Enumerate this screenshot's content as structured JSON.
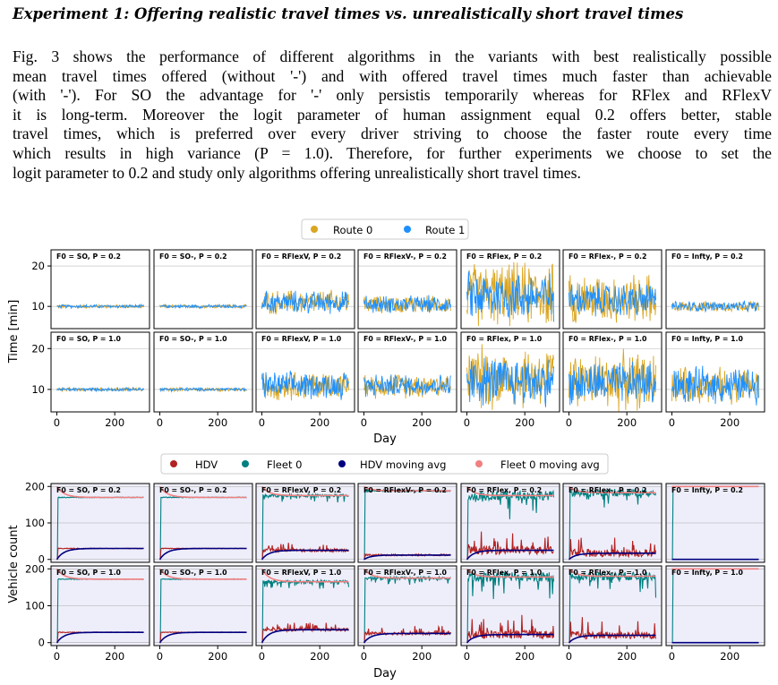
{
  "heading": "Experiment 1: Offering realistic travel times vs. unrealistically short travel times",
  "paragraph_lines": [
    "Fig. 3 shows the performance of different algorithms in the variants with best realistically possible",
    "mean travel times offered (without '-') and with offered travel times much faster than achievable",
    "(with '-'). For SO the advantage for '-' only persistis temporarily whereas for RFlex and RFlexV",
    "it is long-term. Moreover the logit parameter of human assignment equal 0.2 offers better, stable",
    "travel times, which is preferred over every driver striving to choose the faster route every time",
    "which results in high variance (P = 1.0). Therefore, for further experiments we choose to set the",
    "logit parameter to 0.2 and study only algorithms offering unrealistically short travel times."
  ],
  "colors": {
    "route0": "#DAA520",
    "route1": "#1E90FF",
    "hdv": "#B22222",
    "fleet0": "#008080",
    "hdv_avg": "#000080",
    "fleet0_avg": "#F08080",
    "panel_bg_bottom": "#EEEEFA"
  },
  "chart_data": [
    {
      "type": "line",
      "panel_titles": [
        [
          "F0 = SO, P = 0.2",
          "F0 = SO-, P = 0.2",
          "F0 = RFlexV, P = 0.2",
          "F0 = RFlexV-, P = 0.2",
          "F0 = RFlex, P = 0.2",
          "F0 = RFlex-, P = 0.2",
          "F0 = Infty, P = 0.2"
        ],
        [
          "F0 = SO, P = 1.0",
          "F0 = SO-, P = 1.0",
          "F0 = RFlexV, P = 1.0",
          "F0 = RFlexV-, P = 1.0",
          "F0 = RFlex, P = 1.0",
          "F0 = RFlex-, P = 1.0",
          "F0 = Infty, P = 1.0"
        ]
      ],
      "legend": [
        "Route 0",
        "Route 1"
      ],
      "legend_position": "top-center",
      "xlabel": "Day",
      "ylabel": "Time [min]",
      "xticks": [
        0,
        200
      ],
      "yticks": [
        10,
        20
      ],
      "xlim": [
        -20,
        320
      ],
      "ylim": [
        4.5,
        24
      ],
      "series_summary": [
        [
          {
            "route0": {
              "mean": 10,
              "spread": 0.5
            },
            "route1": {
              "mean": 10,
              "spread": 0.5
            }
          },
          {
            "route0": {
              "mean": 10,
              "spread": 0.5
            },
            "route1": {
              "mean": 10,
              "spread": 0.5
            }
          },
          {
            "route0": {
              "mean": 11,
              "spread": 3.5
            },
            "route1": {
              "mean": 11,
              "spread": 3.2
            }
          },
          {
            "route0": {
              "mean": 10.5,
              "spread": 2.5
            },
            "route1": {
              "mean": 10.5,
              "spread": 2.5
            }
          },
          {
            "route0": {
              "mean": 13,
              "spread": 9
            },
            "route1": {
              "mean": 12.5,
              "spread": 7
            }
          },
          {
            "route0": {
              "mean": 12,
              "spread": 7
            },
            "route1": {
              "mean": 11.5,
              "spread": 5
            }
          },
          {
            "route0": {
              "mean": 10,
              "spread": 1.5
            },
            "route1": {
              "mean": 10,
              "spread": 1.5
            }
          }
        ],
        [
          {
            "route0": {
              "mean": 10,
              "spread": 0.5
            },
            "route1": {
              "mean": 10,
              "spread": 0.5
            }
          },
          {
            "route0": {
              "mean": 10,
              "spread": 0.5
            },
            "route1": {
              "mean": 10,
              "spread": 0.5
            }
          },
          {
            "route0": {
              "mean": 11,
              "spread": 4
            },
            "route1": {
              "mean": 11,
              "spread": 3.8
            }
          },
          {
            "route0": {
              "mean": 11,
              "spread": 3.5
            },
            "route1": {
              "mean": 11,
              "spread": 3.2
            }
          },
          {
            "route0": {
              "mean": 13,
              "spread": 9
            },
            "route1": {
              "mean": 12,
              "spread": 7
            }
          },
          {
            "route0": {
              "mean": 12,
              "spread": 8
            },
            "route1": {
              "mean": 11.5,
              "spread": 6
            }
          },
          {
            "route0": {
              "mean": 11,
              "spread": 5
            },
            "route1": {
              "mean": 11,
              "spread": 5
            }
          }
        ]
      ]
    },
    {
      "type": "line",
      "panel_titles": [
        [
          "F0 = SO, P = 0.2",
          "F0 = SO-, P = 0.2",
          "F0 = RFlexV, P = 0.2",
          "F0 = RFlexV-, P = 0.2",
          "F0 = RFlex, P = 0.2",
          "F0 = RFlex-, P = 0.2",
          "F0 = Infty, P = 0.2"
        ],
        [
          "F0 = SO, P = 1.0",
          "F0 = SO-, P = 1.0",
          "F0 = RFlexV, P = 1.0",
          "F0 = RFlexV-, P = 1.0",
          "F0 = RFlex, P = 1.0",
          "F0 = RFlex-, P = 1.0",
          "F0 = Infty, P = 1.0"
        ]
      ],
      "legend": [
        "HDV",
        "Fleet 0",
        "HDV moving avg",
        "Fleet 0 moving avg"
      ],
      "legend_position": "top-center",
      "xlabel": "Day",
      "ylabel": "Vehicle count",
      "xticks": [
        0,
        200
      ],
      "yticks": [
        0,
        100,
        200
      ],
      "xlim": [
        -20,
        320
      ],
      "ylim": [
        -8,
        208
      ],
      "series_summary": [
        [
          {
            "fleet0": 170,
            "hdv": 30,
            "fleet0_noise": 2,
            "hdv_noise": 2
          },
          {
            "fleet0": 170,
            "hdv": 30,
            "fleet0_noise": 2,
            "hdv_noise": 2
          },
          {
            "fleet0": 175,
            "hdv": 25,
            "fleet0_noise": 8,
            "hdv_noise": 8
          },
          {
            "fleet0": 188,
            "hdv": 12,
            "fleet0_noise": 5,
            "hdv_noise": 5
          },
          {
            "fleet0": 175,
            "hdv": 25,
            "fleet0_noise": 25,
            "hdv_noise": 22
          },
          {
            "fleet0": 183,
            "hdv": 17,
            "fleet0_noise": 20,
            "hdv_noise": 20
          },
          {
            "fleet0": 200,
            "hdv": 0,
            "fleet0_noise": 0,
            "hdv_noise": 0
          }
        ],
        [
          {
            "fleet0": 172,
            "hdv": 28,
            "fleet0_noise": 2,
            "hdv_noise": 2
          },
          {
            "fleet0": 172,
            "hdv": 28,
            "fleet0_noise": 2,
            "hdv_noise": 2
          },
          {
            "fleet0": 165,
            "hdv": 35,
            "fleet0_noise": 8,
            "hdv_noise": 8
          },
          {
            "fleet0": 175,
            "hdv": 25,
            "fleet0_noise": 8,
            "hdv_noise": 8
          },
          {
            "fleet0": 178,
            "hdv": 22,
            "fleet0_noise": 25,
            "hdv_noise": 22
          },
          {
            "fleet0": 180,
            "hdv": 20,
            "fleet0_noise": 22,
            "hdv_noise": 20
          },
          {
            "fleet0": 200,
            "hdv": 0,
            "fleet0_noise": 0,
            "hdv_noise": 0
          }
        ]
      ]
    }
  ]
}
